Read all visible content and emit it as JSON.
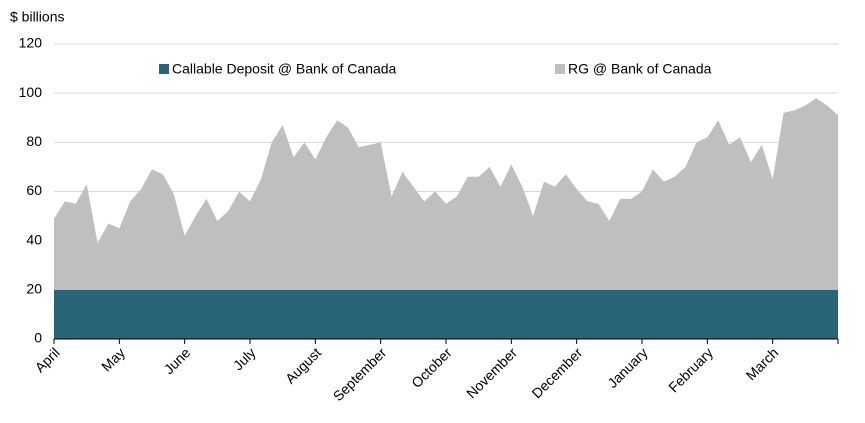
{
  "chart_data": {
    "type": "stacked_area",
    "y_label": "$ billions",
    "categories": [
      "April",
      null,
      null,
      null,
      null,
      null,
      "May",
      null,
      null,
      null,
      null,
      null,
      "June",
      null,
      null,
      null,
      null,
      null,
      "July",
      null,
      null,
      null,
      null,
      null,
      "August",
      null,
      null,
      null,
      null,
      null,
      "September",
      null,
      null,
      null,
      null,
      null,
      "October",
      null,
      null,
      null,
      null,
      null,
      "November",
      null,
      null,
      null,
      null,
      null,
      "December",
      null,
      null,
      null,
      null,
      null,
      "January",
      null,
      null,
      null,
      null,
      null,
      "February",
      null,
      null,
      null,
      null,
      null,
      "March",
      null,
      null,
      null,
      null,
      null,
      null
    ],
    "series": [
      {
        "name": "Callable Deposit @ Bank of Canada",
        "color": "#2a6478",
        "values": [
          20,
          20,
          20,
          20,
          20,
          20,
          20,
          20,
          20,
          20,
          20,
          20,
          20,
          20,
          20,
          20,
          20,
          20,
          20,
          20,
          20,
          20,
          20,
          20,
          20,
          20,
          20,
          20,
          20,
          20,
          20,
          20,
          20,
          20,
          20,
          20,
          20,
          20,
          20,
          20,
          20,
          20,
          20,
          20,
          20,
          20,
          20,
          20,
          20,
          20,
          20,
          20,
          20,
          20,
          20,
          20,
          20,
          20,
          20,
          20,
          20,
          20,
          20,
          20,
          20,
          20,
          20,
          20,
          20,
          20,
          20,
          20,
          20
        ]
      },
      {
        "name": "RG @ Bank of Canada",
        "color": "#bfbfbf",
        "values": [
          29,
          36,
          35,
          43,
          19,
          27,
          25,
          36,
          41,
          49,
          47,
          39,
          22,
          30,
          37,
          28,
          32,
          40,
          36,
          45,
          60,
          67,
          54,
          60,
          53,
          62,
          69,
          66,
          58,
          59,
          60,
          38,
          48,
          42,
          36,
          40,
          35,
          38,
          46,
          46,
          50,
          42,
          51,
          42,
          30,
          44,
          42,
          47,
          41,
          36,
          35,
          28,
          37,
          37,
          40,
          49,
          44,
          46,
          50,
          60,
          62,
          69,
          59,
          62,
          52,
          59,
          45,
          72,
          73,
          75,
          78,
          75,
          71
        ]
      }
    ],
    "ylim": [
      0,
      120
    ],
    "yticks": [
      0,
      20,
      40,
      60,
      80,
      100,
      120
    ],
    "grid": true,
    "legend": "top"
  }
}
